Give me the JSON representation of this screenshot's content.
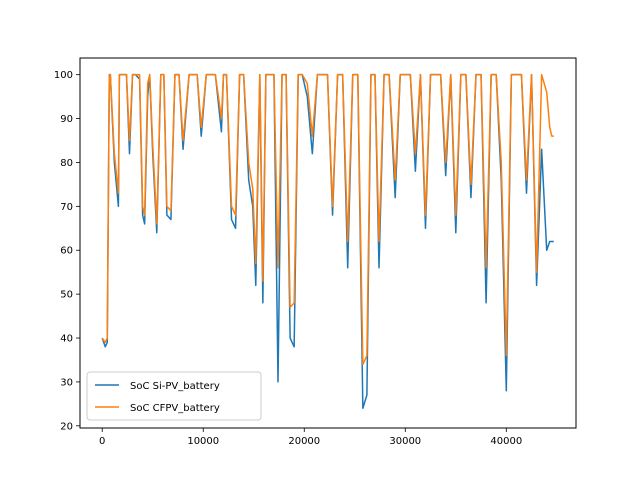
{
  "chart_data": {
    "type": "line",
    "title": "",
    "xlabel": "",
    "ylabel": "",
    "xlim": [
      -2200,
      46900
    ],
    "ylim": [
      19.5,
      103.8
    ],
    "xticks": [
      0,
      10000,
      20000,
      30000,
      40000
    ],
    "yticks": [
      20,
      30,
      40,
      50,
      60,
      70,
      80,
      90,
      100
    ],
    "legend_position": "lower-left",
    "grid": false,
    "series": [
      {
        "name": "SoC Si-PV_battery",
        "color": "#1f77b4",
        "x": [
          0,
          300,
          500,
          700,
          800,
          1200,
          1600,
          1700,
          2000,
          2400,
          2700,
          3000,
          3300,
          3700,
          4000,
          4200,
          4500,
          4700,
          5000,
          5400,
          5800,
          6100,
          6400,
          6800,
          7200,
          7600,
          8000,
          8600,
          9000,
          9400,
          9800,
          10300,
          10700,
          11200,
          11800,
          12000,
          12300,
          12800,
          13200,
          13600,
          14000,
          14500,
          14900,
          15200,
          15600,
          15900,
          16200,
          16600,
          17000,
          17400,
          17800,
          18200,
          18600,
          19000,
          19400,
          19800,
          20300,
          20800,
          21300,
          21800,
          22300,
          22800,
          23300,
          23800,
          24300,
          24800,
          25300,
          25800,
          26200,
          26600,
          27000,
          27400,
          27900,
          28400,
          29000,
          29500,
          30000,
          30500,
          31000,
          31500,
          32000,
          32500,
          33000,
          33500,
          34000,
          34500,
          35000,
          35500,
          36000,
          36500,
          37000,
          37500,
          38000,
          38500,
          39000,
          39500,
          40000,
          40500,
          41000,
          41500,
          42000,
          42500,
          43000,
          43500,
          44000,
          44300,
          44500,
          44700
        ],
        "y": [
          40,
          38,
          39,
          100,
          100,
          80,
          70,
          100,
          100,
          100,
          82,
          100,
          100,
          99,
          68,
          66,
          95,
          100,
          82,
          64,
          100,
          100,
          68,
          67,
          100,
          100,
          83,
          100,
          100,
          100,
          86,
          100,
          100,
          100,
          87,
          100,
          100,
          67,
          65,
          100,
          100,
          76,
          70,
          52,
          100,
          48,
          100,
          100,
          100,
          30,
          100,
          100,
          40,
          38,
          100,
          100,
          95,
          82,
          100,
          100,
          100,
          68,
          100,
          100,
          56,
          100,
          100,
          24,
          27,
          100,
          100,
          56,
          100,
          100,
          72,
          100,
          100,
          100,
          78,
          100,
          65,
          100,
          100,
          100,
          77,
          100,
          64,
          100,
          100,
          72,
          100,
          100,
          48,
          100,
          100,
          76,
          28,
          100,
          100,
          100,
          73,
          100,
          52,
          83,
          60,
          62,
          62,
          62
        ]
      },
      {
        "name": "SoC CFPV_battery",
        "color": "#ff7f0e",
        "x": [
          0,
          300,
          500,
          700,
          800,
          1200,
          1600,
          1700,
          2000,
          2400,
          2700,
          3000,
          3300,
          3700,
          4000,
          4200,
          4500,
          4700,
          5000,
          5400,
          5800,
          6100,
          6400,
          6800,
          7200,
          7600,
          8000,
          8600,
          9000,
          9400,
          9800,
          10300,
          10700,
          11200,
          11800,
          12000,
          12300,
          12800,
          13200,
          13600,
          14000,
          14500,
          14900,
          15200,
          15600,
          15900,
          16200,
          16600,
          17000,
          17400,
          17800,
          18200,
          18600,
          19000,
          19400,
          19800,
          20300,
          20800,
          21300,
          21800,
          22300,
          22800,
          23300,
          23800,
          24300,
          24800,
          25300,
          25800,
          26200,
          26600,
          27000,
          27400,
          27900,
          28400,
          29000,
          29500,
          30000,
          30500,
          31000,
          31500,
          32000,
          32500,
          33000,
          33500,
          34000,
          34500,
          35000,
          35500,
          36000,
          36500,
          37000,
          37500,
          38000,
          38500,
          39000,
          39500,
          40000,
          40500,
          41000,
          41500,
          42000,
          42500,
          43000,
          43500,
          44000,
          44300,
          44500,
          44700
        ],
        "y": [
          40,
          39,
          40,
          100,
          100,
          82,
          73,
          100,
          100,
          100,
          85,
          100,
          100,
          100,
          70,
          68,
          98,
          100,
          84,
          66,
          100,
          100,
          70,
          69,
          100,
          100,
          85,
          100,
          100,
          100,
          88,
          100,
          100,
          100,
          90,
          100,
          100,
          70,
          68,
          100,
          100,
          80,
          74,
          57,
          100,
          53,
          100,
          100,
          100,
          56,
          100,
          100,
          47,
          48,
          100,
          100,
          98,
          86,
          100,
          100,
          100,
          70,
          100,
          100,
          62,
          100,
          100,
          34,
          36,
          100,
          100,
          62,
          100,
          100,
          76,
          100,
          100,
          100,
          82,
          100,
          68,
          100,
          100,
          100,
          80,
          100,
          68,
          100,
          100,
          75,
          100,
          100,
          56,
          100,
          100,
          80,
          36,
          100,
          100,
          100,
          76,
          100,
          55,
          100,
          96,
          88,
          86,
          86
        ]
      }
    ]
  }
}
